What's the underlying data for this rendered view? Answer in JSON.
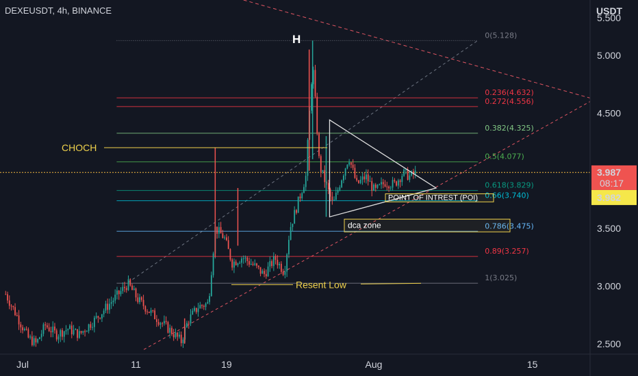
{
  "header": {
    "symbol_line": "DEXEUSDT, 4h, BINANCE",
    "currency": "USDT"
  },
  "colors": {
    "bg": "#131722",
    "up": "#26a69a",
    "down": "#ef5350",
    "yellow": "#f0d24c",
    "red_dash": "#e05562",
    "grid_dash": "#6e7582"
  },
  "chart_data": {
    "type": "candlestick",
    "title": "DEXEUSDT, 4h, BINANCE",
    "ylim": [
      2.41,
      5.48
    ],
    "y_ticks": [
      {
        "value": 2.5,
        "label": "2.500"
      },
      {
        "value": 3.0,
        "label": "3.000"
      },
      {
        "value": 3.5,
        "label": "3.500"
      },
      {
        "value": 4.5,
        "label": "4.500"
      },
      {
        "value": 5.0,
        "label": "5.000"
      }
    ],
    "y_top_partial": "5.500",
    "x_ticks": [
      {
        "day": 0,
        "label": "Jul"
      },
      {
        "day": 10,
        "label": "11"
      },
      {
        "day": 18,
        "label": "19"
      },
      {
        "day": 31,
        "label": "Aug"
      },
      {
        "day": 45,
        "label": "15"
      }
    ],
    "x_day_span": [
      -2.0,
      50.1
    ],
    "price_labels": [
      {
        "value": 3.987,
        "label": "3.987",
        "sub": "08:17",
        "bg": "#ef5350",
        "color": "#ffffff"
      },
      {
        "value": 3.982,
        "label": "3.982",
        "bg": "#f5e74a",
        "color": "#131722"
      }
    ],
    "fib_levels": [
      {
        "ratio": "0",
        "value": 5.128,
        "label": "0(5.128)",
        "color": "#787b86"
      },
      {
        "ratio": "0.236",
        "value": 4.632,
        "label": "0.236(4.632)",
        "color": "#f23645"
      },
      {
        "ratio": "0.272",
        "value": 4.556,
        "label": "0.272(4.556)",
        "color": "#f23645"
      },
      {
        "ratio": "0.382",
        "value": 4.325,
        "label": "0.382(4.325)",
        "color": "#81c784"
      },
      {
        "ratio": "0.5",
        "value": 4.077,
        "label": "0.5(4.077)",
        "color": "#4caf50"
      },
      {
        "ratio": "0.618",
        "value": 3.829,
        "label": "0.618(3.829)",
        "color": "#089981"
      },
      {
        "ratio": "0.66",
        "value": 3.74,
        "label": "0.66(3.740)",
        "color": "#00bcd4"
      },
      {
        "ratio": "0.786",
        "value": 3.475,
        "label": "0.786(3.475)",
        "color": "#64b5f6"
      },
      {
        "ratio": "0.89",
        "value": 3.257,
        "label": "0.89(3.257)",
        "color": "#f23645"
      },
      {
        "ratio": "1",
        "value": 3.025,
        "label": "1(3.025)",
        "color": "#787b86"
      }
    ],
    "fib_day_range": [
      8.3,
      40.2
    ],
    "annotations": {
      "head": "H",
      "choch": "CHOCH",
      "choch_value": 4.2,
      "resent_low": "Resent Low",
      "resent_low_value": 3.03,
      "poi": "POINT OF INTREST (POI)",
      "poi_top": 3.8,
      "poi_bottom": 3.73,
      "dca": "dca zone",
      "dca_top": 3.58,
      "dca_bottom": 3.47
    },
    "price_line": 3.985,
    "triangle": [
      [
        27.1,
        4.44
      ],
      [
        36.5,
        3.85
      ],
      [
        27.1,
        3.6
      ]
    ],
    "channel_upper": [
      [
        9.3,
        3.03
      ],
      [
        40.2,
        5.13
      ]
    ],
    "channel_lower": [
      [
        10.7,
        2.45
      ],
      [
        50.1,
        4.6
      ]
    ],
    "descending_line": [
      [
        19.5,
        5.48
      ],
      [
        50.1,
        4.63
      ]
    ],
    "ohlc_samples": [
      [
        -1.5,
        2.93
      ],
      [
        0.5,
        2.55
      ],
      [
        1.2,
        2.5
      ],
      [
        2.0,
        2.66
      ],
      [
        3.0,
        2.58
      ],
      [
        4.0,
        2.63
      ],
      [
        5.0,
        2.58
      ],
      [
        6.5,
        2.72
      ],
      [
        7.7,
        2.85
      ],
      [
        9.3,
        3.02
      ],
      [
        10.2,
        2.88
      ],
      [
        11.2,
        2.78
      ],
      [
        12.3,
        2.68
      ],
      [
        13.2,
        2.6
      ],
      [
        14.0,
        2.52
      ],
      [
        14.6,
        2.7
      ],
      [
        15.5,
        2.82
      ],
      [
        16.4,
        2.85
      ],
      [
        17.0,
        3.5
      ],
      [
        17.8,
        3.42
      ],
      [
        18.5,
        3.2
      ],
      [
        19.4,
        3.25
      ],
      [
        20.4,
        3.18
      ],
      [
        21.3,
        3.1
      ],
      [
        22.3,
        3.24
      ],
      [
        23.1,
        3.12
      ],
      [
        23.6,
        3.5
      ],
      [
        24.3,
        3.72
      ],
      [
        25.0,
        3.95
      ],
      [
        25.6,
        4.95
      ],
      [
        26.2,
        4.05
      ],
      [
        26.8,
        3.88
      ],
      [
        27.4,
        3.7
      ],
      [
        28.1,
        3.92
      ],
      [
        28.8,
        4.12
      ],
      [
        29.5,
        3.88
      ],
      [
        30.3,
        3.95
      ],
      [
        31.1,
        3.82
      ],
      [
        32.0,
        3.9
      ],
      [
        32.8,
        3.88
      ],
      [
        33.6,
        3.98
      ],
      [
        34.2,
        3.95
      ],
      [
        34.8,
        3.987
      ]
    ]
  }
}
